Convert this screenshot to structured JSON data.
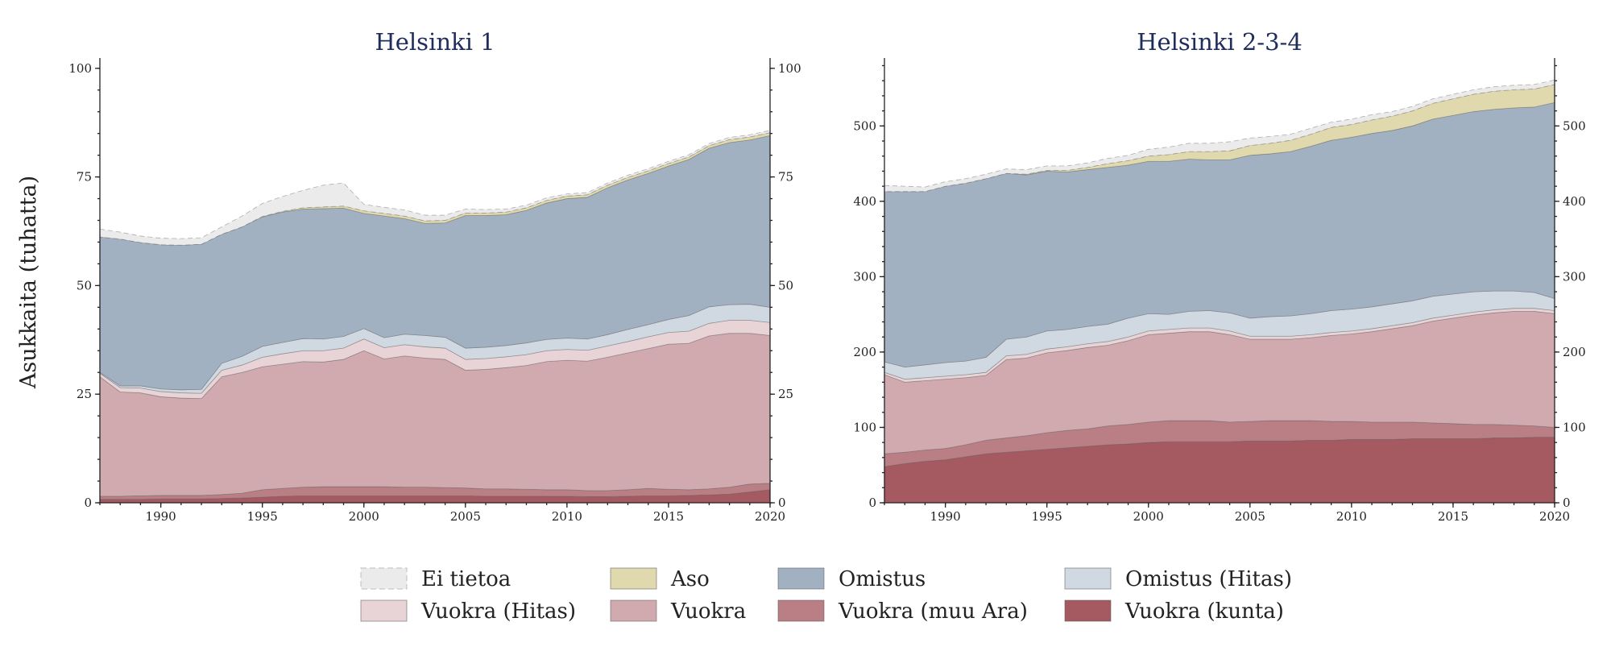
{
  "chart_data": {
    "type": "area",
    "ylabel": "Asukkaita (tuhatta)",
    "x_ticks": [
      "1990",
      "1995",
      "2000",
      "2005",
      "2010",
      "2015",
      "2020"
    ],
    "legend_position": "bottom-center",
    "legend": [
      {
        "key": "ei_tietoa",
        "label": "Ei tietoa",
        "color": "#ebebeb",
        "dashed": true
      },
      {
        "key": "aso",
        "label": "Aso",
        "color": "#e0d9ad"
      },
      {
        "key": "omistus",
        "label": "Omistus",
        "color": "#a2b1c2"
      },
      {
        "key": "omistus_hitas",
        "label": "Omistus (Hitas)",
        "color": "#d0d9e1"
      },
      {
        "key": "vuokra_hitas",
        "label": "Vuokra (Hitas)",
        "color": "#e8d4d6"
      },
      {
        "key": "vuokra",
        "label": "Vuokra",
        "color": "#d1aab0"
      },
      {
        "key": "vuokra_muu_ara",
        "label": "Vuokra (muu Ara)",
        "color": "#b97f85"
      },
      {
        "key": "vuokra_kunta",
        "label": "Vuokra (kunta)",
        "color": "#a55960"
      }
    ],
    "panels": [
      {
        "title": "Helsinki 1",
        "x": [
          1987,
          1988,
          1989,
          1990,
          1991,
          1992,
          1993,
          1994,
          1995,
          1996,
          1997,
          1998,
          1999,
          2000,
          2001,
          2002,
          2003,
          2004,
          2005,
          2006,
          2007,
          2008,
          2009,
          2010,
          2011,
          2012,
          2013,
          2014,
          2015,
          2016,
          2017,
          2018,
          2019,
          2020
        ],
        "xlim": [
          1987,
          2020
        ],
        "ylim": [
          0,
          102
        ],
        "y_ticks": [
          0,
          25,
          50,
          75,
          100
        ],
        "y_tick_labels": [
          "0",
          "25",
          "50",
          "75",
          "100"
        ],
        "series": [
          {
            "key": "vuokra_kunta",
            "values": [
              0.8,
              0.8,
              0.8,
              0.9,
              0.9,
              0.9,
              1,
              1.1,
              1.3,
              1.5,
              1.6,
              1.6,
              1.6,
              1.6,
              1.6,
              1.6,
              1.6,
              1.6,
              1.6,
              1.5,
              1.5,
              1.5,
              1.5,
              1.5,
              1.4,
              1.4,
              1.5,
              1.6,
              1.6,
              1.7,
              1.8,
              2,
              2.5,
              3
            ]
          },
          {
            "key": "vuokra_muu_ara",
            "values": [
              0.7,
              0.7,
              0.8,
              0.8,
              0.8,
              0.8,
              0.9,
              1.1,
              1.7,
              1.8,
              2,
              2.1,
              2.1,
              2.1,
              2.1,
              2,
              2,
              1.9,
              1.8,
              1.7,
              1.7,
              1.6,
              1.5,
              1.5,
              1.4,
              1.4,
              1.5,
              1.7,
              1.5,
              1.3,
              1.4,
              1.6,
              1.8,
              1.5
            ]
          },
          {
            "key": "vuokra",
            "values": [
              27.5,
              24,
              23.7,
              22.7,
              22.4,
              22.3,
              27.1,
              27.8,
              28.3,
              28.6,
              28.9,
              28.7,
              29.3,
              31.3,
              29.4,
              30.2,
              29.7,
              29.5,
              27.1,
              27.5,
              27.9,
              28.5,
              29.5,
              29.8,
              29.8,
              30.7,
              31.5,
              32.2,
              33.4,
              33.7,
              35.2,
              35.4,
              34.7,
              34
            ]
          },
          {
            "key": "vuokra_hitas",
            "values": [
              0.8,
              1,
              1.1,
              1.2,
              1.2,
              1.2,
              1.5,
              1.7,
              2.2,
              2.4,
              2.5,
              2.6,
              2.6,
              2.7,
              2.6,
              2.6,
              2.6,
              2.6,
              2.5,
              2.5,
              2.5,
              2.5,
              2.5,
              2.5,
              2.5,
              2.6,
              2.6,
              2.7,
              2.7,
              2.8,
              2.9,
              3,
              3,
              3
            ]
          },
          {
            "key": "omistus_hitas",
            "values": [
              0.2,
              0.4,
              0.5,
              0.6,
              0.7,
              0.9,
              1.6,
              2,
              2.5,
              2.6,
              2.8,
              2.7,
              2.7,
              2.4,
              2.3,
              2.4,
              2.6,
              2.5,
              2.6,
              2.6,
              2.6,
              2.7,
              2.6,
              2.6,
              2.6,
              2.6,
              2.8,
              2.8,
              3,
              3.6,
              3.8,
              3.6,
              3.7,
              3.5
            ]
          },
          {
            "key": "omistus",
            "values": [
              31.2,
              33.8,
              33,
              33.2,
              33.3,
              33.4,
              29.7,
              29.8,
              29.8,
              30,
              29.8,
              30,
              29.5,
              26.5,
              28,
              26.6,
              25.8,
              26.3,
              30.5,
              30.3,
              30.1,
              30.5,
              31.4,
              32.1,
              32.6,
              33.8,
              34.4,
              34.8,
              35.3,
              35.9,
              36.5,
              37.3,
              37.8,
              39.5
            ]
          },
          {
            "key": "aso",
            "values": [
              0,
              0,
              0,
              0,
              0,
              0,
              0,
              0,
              0.1,
              0.2,
              0.3,
              0.4,
              0.5,
              0.6,
              0.6,
              0.6,
              0.6,
              0.6,
              0.6,
              0.6,
              0.6,
              0.6,
              0.6,
              0.6,
              0.6,
              0.6,
              0.6,
              0.6,
              0.6,
              0.6,
              0.6,
              0.7,
              0.7,
              0.7
            ]
          },
          {
            "key": "ei_tietoa",
            "values": [
              1.8,
              1.6,
              1.5,
              1.5,
              1.5,
              1.5,
              1.7,
              2.5,
              3,
              3.4,
              4,
              5,
              5.3,
              1.5,
              1.4,
              1.4,
              1.3,
              1.2,
              0.9,
              0.8,
              0.7,
              0.6,
              0.6,
              0.5,
              0.5,
              0.5,
              0.5,
              0.5,
              0.5,
              0.5,
              0.5,
              0.5,
              0.5,
              0.5
            ]
          }
        ]
      },
      {
        "title": "Helsinki 2-3-4",
        "x": [
          1987,
          1988,
          1989,
          1990,
          1991,
          1992,
          1993,
          1994,
          1995,
          1996,
          1997,
          1998,
          1999,
          2000,
          2001,
          2002,
          2003,
          2004,
          2005,
          2006,
          2007,
          2008,
          2009,
          2010,
          2011,
          2012,
          2013,
          2014,
          2015,
          2016,
          2017,
          2018,
          2019,
          2020
        ],
        "xlim": [
          1987,
          2020
        ],
        "ylim": [
          0,
          588
        ],
        "y_ticks": [
          0,
          100,
          200,
          300,
          400,
          500
        ],
        "y_tick_labels": [
          "0",
          "100",
          "200",
          "300",
          "400",
          "500"
        ],
        "series": [
          {
            "key": "vuokra_kunta",
            "values": [
              48,
              52,
              55,
              57,
              61,
              65,
              67,
              69,
              71,
              73,
              75,
              77,
              78,
              80,
              81,
              81,
              81,
              81,
              82,
              82,
              82,
              83,
              83,
              84,
              84,
              84,
              85,
              85,
              85,
              85,
              86,
              86,
              87,
              87
            ]
          },
          {
            "key": "vuokra_muu_ara",
            "values": [
              17,
              15,
              15,
              15,
              16,
              18,
              19,
              20,
              22,
              23,
              23,
              25,
              26,
              27,
              28,
              28,
              28,
              26,
              26,
              27,
              27,
              26,
              25,
              24,
              23,
              23,
              22,
              21,
              20,
              19,
              18,
              17,
              15,
              13
            ]
          },
          {
            "key": "vuokra",
            "values": [
              105,
              93,
              92,
              92,
              89,
              86,
              104,
              103,
              106,
              106,
              108,
              107,
              111,
              116,
              116,
              118,
              118,
              116,
              109,
              108,
              108,
              110,
              114,
              116,
              120,
              124,
              128,
              135,
              140,
              145,
              148,
              151,
              152,
              151
            ]
          },
          {
            "key": "vuokra_hitas",
            "values": [
              3,
              4,
              4,
              4,
              4,
              4,
              5,
              5,
              5,
              5,
              5,
              5,
              5,
              5,
              5,
              5,
              5,
              5,
              4,
              4,
              4,
              4,
              4,
              4,
              4,
              4,
              4,
              4,
              4,
              4,
              4,
              4,
              4,
              4
            ]
          },
          {
            "key": "omistus_hitas",
            "values": [
              14,
              16,
              17,
              18,
              18,
              20,
              22,
              23,
              24,
              23,
              23,
              23,
              25,
              23,
              20,
              22,
              23,
              24,
              24,
              26,
              27,
              28,
              29,
              29,
              29,
              29,
              29,
              29,
              28,
              27,
              25,
              23,
              21,
              16
            ]
          },
          {
            "key": "omistus",
            "values": [
              226,
              233,
              230,
              234,
              236,
              237,
              220,
              215,
              212,
              209,
              208,
              208,
              203,
              202,
              203,
              202,
              200,
              203,
              216,
              216,
              218,
              222,
              226,
              228,
              230,
              230,
              232,
              235,
              237,
              239,
              241,
              243,
              246,
              260
            ]
          },
          {
            "key": "aso",
            "values": [
              0,
              0,
              0,
              0,
              0,
              0,
              0,
              1,
              1,
              2,
              3,
              5,
              6,
              7,
              9,
              10,
              11,
              12,
              13,
              14,
              15,
              16,
              17,
              17,
              18,
              19,
              20,
              21,
              22,
              23,
              24,
              24,
              24,
              24
            ]
          },
          {
            "key": "ei_tietoa",
            "values": [
              8,
              7,
              6,
              6,
              6,
              6,
              6,
              6,
              6,
              6,
              6,
              7,
              7,
              9,
              10,
              11,
              11,
              12,
              10,
              9,
              8,
              8,
              7,
              7,
              7,
              6,
              6,
              6,
              6,
              6,
              6,
              6,
              6,
              6
            ]
          }
        ]
      }
    ]
  }
}
